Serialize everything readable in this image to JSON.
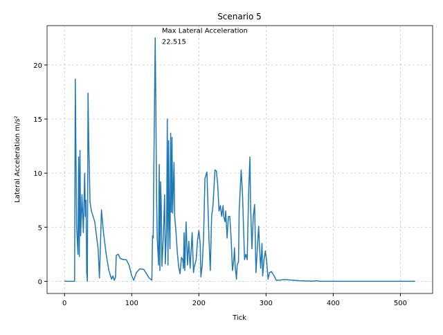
{
  "chart_data": {
    "type": "line",
    "title": "Scenario 5",
    "x_label": "Tick",
    "y_label": "Lateral Acceleration m/s²",
    "annotation": [
      "Max Lateral Acceleration",
      "22.515"
    ],
    "annotation_x": 145,
    "annotation_y": 22.515,
    "color": "#1f77b4",
    "grid": true,
    "xlim": [
      -26,
      548
    ],
    "ylim": [
      -1.126,
      23.641
    ],
    "xticks": [
      0,
      100,
      200,
      300,
      400,
      500
    ],
    "yticks": [
      0,
      5,
      10,
      15,
      20
    ],
    "x": [
      0,
      15,
      16,
      18,
      20,
      21,
      22,
      23,
      24,
      26,
      28,
      30,
      31,
      32,
      33,
      34,
      35,
      36,
      38,
      40,
      45,
      50,
      52,
      55,
      58,
      62,
      66,
      70,
      72,
      74,
      76,
      77,
      80,
      83,
      88,
      92,
      96,
      100,
      103,
      107,
      112,
      118,
      122,
      126,
      130,
      131,
      132,
      133,
      135,
      136,
      137,
      138,
      140,
      141,
      142,
      143,
      144,
      145,
      147,
      149,
      150,
      152,
      153,
      154,
      155,
      156,
      157,
      158,
      159,
      160,
      161,
      163,
      164,
      166,
      168,
      170,
      172,
      174,
      176,
      177,
      178,
      179,
      181,
      183,
      185,
      187,
      190,
      192,
      193,
      196,
      198,
      200,
      202,
      203,
      205,
      207,
      209,
      212,
      215,
      217,
      219,
      221,
      224,
      226,
      228,
      230,
      232,
      234,
      236,
      237,
      239,
      240,
      242,
      244,
      246,
      248,
      250,
      252,
      253,
      254,
      256,
      257,
      259,
      260,
      263,
      265,
      268,
      270,
      272,
      274,
      276,
      277,
      279,
      281,
      283,
      285,
      287,
      289,
      290,
      292,
      294,
      295,
      297,
      299,
      301,
      303,
      305,
      308,
      312,
      315,
      320,
      325,
      330,
      340,
      350,
      360,
      370,
      375,
      380,
      400,
      450,
      522
    ],
    "values": [
      0,
      0,
      18.7,
      5,
      2.5,
      11.5,
      2.3,
      12.1,
      4.2,
      8,
      4.5,
      10,
      6,
      7.5,
      0.8,
      0,
      17.4,
      13,
      7.3,
      6.5,
      5.5,
      3,
      0.3,
      6.6,
      4.5,
      2.5,
      1,
      0.2,
      0.5,
      0.1,
      0.4,
      2.4,
      2.5,
      2.1,
      2,
      2,
      1.5,
      0.5,
      0.1,
      0.8,
      1.15,
      1.1,
      0.7,
      0.3,
      0.1,
      4.2,
      4,
      10.7,
      22.515,
      16,
      8,
      4,
      1.5,
      10.8,
      1,
      9.2,
      7,
      1.4,
      4,
      8,
      1.6,
      5,
      15,
      1.5,
      13,
      5.5,
      3,
      13.7,
      6.4,
      13.3,
      6.3,
      11,
      6,
      4.5,
      2.6,
      1.3,
      0.7,
      2.2,
      2,
      1.2,
      4.5,
      1,
      5.5,
      1.5,
      3.7,
      1.2,
      4.5,
      0.8,
      1.3,
      2,
      3.8,
      4.7,
      3.5,
      0.4,
      1.5,
      4,
      9.5,
      10.1,
      4,
      1,
      6,
      7,
      10.3,
      10.2,
      9,
      6.5,
      7,
      6,
      7,
      6,
      5.5,
      6.5,
      4,
      6,
      6,
      4,
      1,
      2,
      3.1,
      1.4,
      0.2,
      1.5,
      1.8,
      6.5,
      10.3,
      8,
      2,
      2.5,
      2,
      8,
      11.5,
      7,
      3,
      6,
      7.1,
      0.8,
      3,
      5.1,
      3.5,
      1.2,
      3.5,
      0.5,
      2,
      2.8,
      1.8,
      0.2,
      0.8,
      0.9,
      0.5,
      0.1,
      0.1,
      0.15,
      0.15,
      0.1,
      0.05,
      0.03,
      0.01,
      0.05,
      0,
      0,
      0,
      0
    ]
  }
}
